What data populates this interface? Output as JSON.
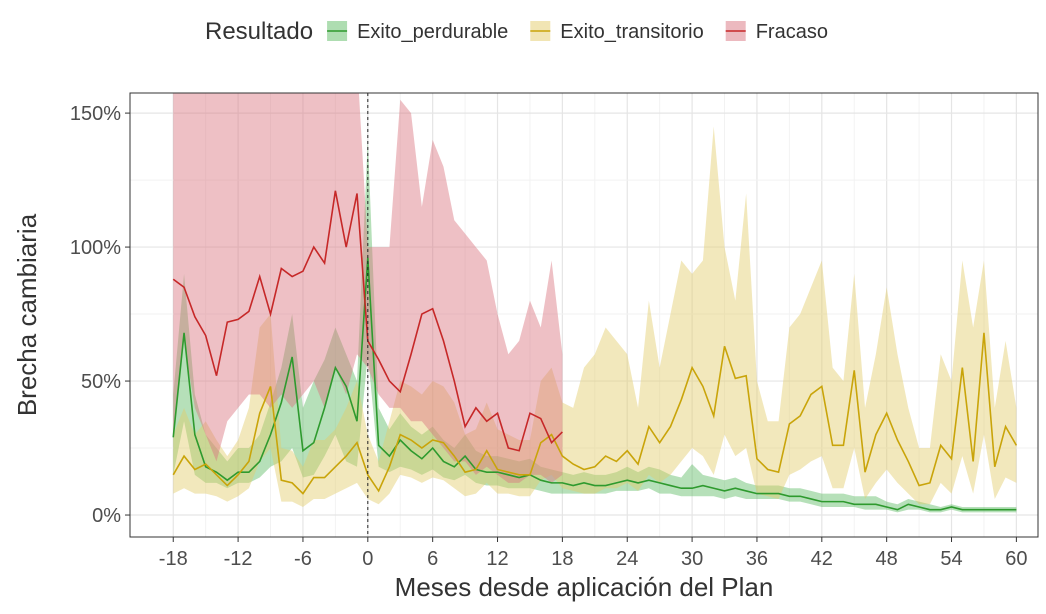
{
  "chart_data": {
    "type": "line",
    "x_label": "Meses desde aplicación del Plan",
    "y_label": "Brecha cambiaria",
    "legend_title": "Resultado",
    "legend_position": "top",
    "grid": true,
    "vline": 0,
    "xlim": [
      -22,
      62
    ],
    "ylim": [
      -8.2,
      157.5
    ],
    "xticks": [
      -18,
      -12,
      -6,
      0,
      6,
      12,
      18,
      24,
      30,
      36,
      42,
      48,
      54,
      60
    ],
    "yticks": [
      {
        "value": 0,
        "label": "0%"
      },
      {
        "value": 50,
        "label": "50%"
      },
      {
        "value": 100,
        "label": "100%"
      },
      {
        "value": 150,
        "label": "150%"
      }
    ],
    "x": [
      -18,
      -17,
      -16,
      -15,
      -14,
      -13,
      -12,
      -11,
      -10,
      -9,
      -8,
      -7,
      -6,
      -5,
      -4,
      -3,
      -2,
      -1,
      0,
      1,
      2,
      3,
      4,
      5,
      6,
      7,
      8,
      9,
      10,
      11,
      12,
      13,
      14,
      15,
      16,
      17,
      18,
      19,
      20,
      21,
      22,
      23,
      24,
      25,
      26,
      27,
      28,
      29,
      30,
      31,
      32,
      33,
      34,
      35,
      36,
      37,
      38,
      39,
      40,
      41,
      42,
      43,
      44,
      45,
      46,
      47,
      48,
      49,
      50,
      51,
      52,
      53,
      54,
      55,
      56,
      57,
      58,
      59,
      60
    ],
    "series": [
      {
        "name": "Exito_perdurable",
        "color": "#2e9a2e",
        "fill": "#5dbb63",
        "values": [
          29,
          68,
          30,
          18,
          16,
          13,
          16,
          16,
          20,
          30,
          42,
          59,
          24,
          27,
          40,
          55,
          48,
          35,
          96,
          26,
          22,
          28,
          24,
          21,
          25,
          20,
          18,
          22,
          17,
          16,
          16,
          15,
          14,
          15,
          13,
          12,
          12,
          11,
          12,
          11,
          11,
          12,
          13,
          12,
          13,
          12,
          11,
          10,
          10,
          11,
          10,
          9,
          10,
          9,
          8,
          8,
          8,
          7,
          7,
          6,
          5,
          5,
          5,
          4,
          4,
          4,
          3,
          2,
          4,
          3,
          2,
          2,
          3,
          2,
          2,
          2,
          2,
          2,
          2
        ],
        "lower": [
          15,
          35,
          15,
          12,
          12,
          10,
          12,
          12,
          14,
          18,
          20,
          25,
          14,
          15,
          22,
          30,
          20,
          18,
          60,
          18,
          16,
          18,
          17,
          15,
          17,
          14,
          13,
          15,
          12,
          11,
          11,
          10,
          10,
          10,
          9,
          8,
          8,
          8,
          8,
          8,
          8,
          9,
          9,
          9,
          10,
          8,
          8,
          7,
          7,
          7,
          7,
          6,
          7,
          6,
          6,
          6,
          6,
          5,
          5,
          4,
          3,
          3,
          3,
          3,
          2,
          2,
          2,
          1,
          2,
          2,
          1,
          1,
          2,
          1,
          1,
          1,
          1,
          1,
          1
        ],
        "upper": [
          45,
          90,
          45,
          30,
          25,
          20,
          25,
          25,
          30,
          42,
          55,
          75,
          40,
          50,
          58,
          70,
          60,
          50,
          140,
          40,
          32,
          38,
          33,
          30,
          33,
          28,
          25,
          30,
          24,
          22,
          22,
          21,
          20,
          21,
          18,
          17,
          16,
          15,
          16,
          15,
          15,
          16,
          18,
          16,
          18,
          17,
          15,
          14,
          19,
          15,
          14,
          13,
          14,
          12,
          11,
          11,
          11,
          10,
          10,
          9,
          8,
          8,
          8,
          7,
          7,
          7,
          5,
          4,
          6,
          5,
          4,
          3,
          4,
          3,
          3,
          3,
          3,
          3,
          3
        ]
      },
      {
        "name": "Exito_transitorio",
        "color": "#c9a40a",
        "fill": "#e3cc6a",
        "values": [
          15,
          22,
          17,
          19,
          15,
          11,
          15,
          20,
          38,
          48,
          13,
          12,
          8,
          14,
          14,
          18,
          22,
          27,
          15,
          9,
          18,
          30,
          28,
          25,
          28,
          27,
          22,
          16,
          17,
          24,
          17,
          16,
          15,
          15,
          27,
          30,
          22,
          19,
          17,
          18,
          22,
          20,
          24,
          19,
          33,
          27,
          33,
          43,
          55,
          48,
          37,
          63,
          51,
          52,
          21,
          17,
          16,
          34,
          37,
          45,
          48,
          26,
          26,
          54,
          16,
          30,
          38,
          28,
          20,
          11,
          12,
          26,
          21,
          55,
          20,
          68,
          18,
          33,
          26
        ],
        "lower": [
          8,
          10,
          8,
          8,
          7,
          5,
          7,
          10,
          20,
          25,
          5,
          5,
          3,
          6,
          6,
          8,
          10,
          12,
          6,
          4,
          8,
          15,
          14,
          12,
          14,
          13,
          10,
          7,
          8,
          12,
          8,
          8,
          7,
          7,
          13,
          15,
          10,
          9,
          8,
          8,
          10,
          10,
          12,
          9,
          15,
          12,
          15,
          20,
          25,
          22,
          15,
          30,
          22,
          25,
          8,
          7,
          6,
          15,
          17,
          20,
          22,
          10,
          10,
          25,
          6,
          12,
          17,
          12,
          8,
          4,
          4,
          12,
          8,
          22,
          8,
          30,
          6,
          14,
          12
        ],
        "upper": [
          30,
          40,
          30,
          35,
          28,
          22,
          28,
          40,
          70,
          75,
          25,
          24,
          18,
          28,
          28,
          32,
          40,
          50,
          30,
          20,
          35,
          50,
          48,
          45,
          50,
          48,
          42,
          30,
          32,
          42,
          32,
          30,
          28,
          28,
          50,
          55,
          42,
          40,
          55,
          60,
          70,
          65,
          60,
          40,
          80,
          55,
          75,
          95,
          90,
          95,
          145,
          100,
          80,
          120,
          50,
          35,
          35,
          70,
          75,
          85,
          95,
          55,
          50,
          90,
          40,
          60,
          85,
          60,
          40,
          25,
          25,
          60,
          50,
          95,
          70,
          95,
          40,
          65,
          40
        ]
      },
      {
        "name": "Fracaso",
        "color": "#c62828",
        "fill": "#d9737f",
        "values": [
          88,
          85,
          74,
          67,
          52,
          72,
          73,
          76,
          89,
          75,
          92,
          89,
          91,
          100,
          94,
          121,
          100,
          120,
          65,
          58,
          50,
          46,
          60,
          75,
          77,
          65,
          50,
          33,
          40,
          35,
          38,
          25,
          24,
          38,
          36,
          27,
          31,
          null,
          null,
          null,
          null,
          null,
          null,
          null,
          null,
          null,
          null,
          null,
          null,
          null,
          null,
          null,
          null,
          null,
          null,
          null,
          null,
          null,
          null,
          null,
          null,
          null,
          null,
          null,
          null,
          null,
          null,
          null,
          null,
          null,
          null,
          null,
          null,
          null,
          null,
          null,
          null,
          null,
          null
        ],
        "lower": [
          30,
          65,
          40,
          30,
          20,
          35,
          40,
          45,
          45,
          40,
          45,
          40,
          45,
          50,
          40,
          55,
          45,
          60,
          55,
          45,
          40,
          40,
          35,
          35,
          30,
          25,
          20,
          20,
          15,
          18,
          15,
          12,
          12,
          15,
          15,
          12,
          15,
          null,
          null,
          null,
          null,
          null,
          null,
          null,
          null,
          null,
          null,
          null,
          null,
          null,
          null,
          null,
          null,
          null,
          null,
          null,
          null,
          null,
          null,
          null,
          null,
          null,
          null,
          null,
          null,
          null,
          null,
          null,
          null,
          null,
          null,
          null,
          null,
          null,
          null,
          null,
          null,
          null,
          null
        ],
        "upper": [
          170,
          170,
          170,
          170,
          170,
          170,
          170,
          170,
          170,
          170,
          170,
          170,
          170,
          170,
          170,
          170,
          170,
          170,
          100,
          100,
          100,
          155,
          150,
          115,
          140,
          130,
          110,
          105,
          100,
          95,
          75,
          60,
          65,
          80,
          70,
          95,
          60,
          null,
          null,
          null,
          null,
          null,
          null,
          null,
          null,
          null,
          null,
          null,
          null,
          null,
          null,
          null,
          null,
          null,
          null,
          null,
          null,
          null,
          null,
          null,
          null,
          null,
          null,
          null,
          null,
          null,
          null,
          null,
          null,
          null,
          null,
          null,
          null,
          null,
          null,
          null,
          null,
          null,
          null
        ]
      }
    ]
  }
}
